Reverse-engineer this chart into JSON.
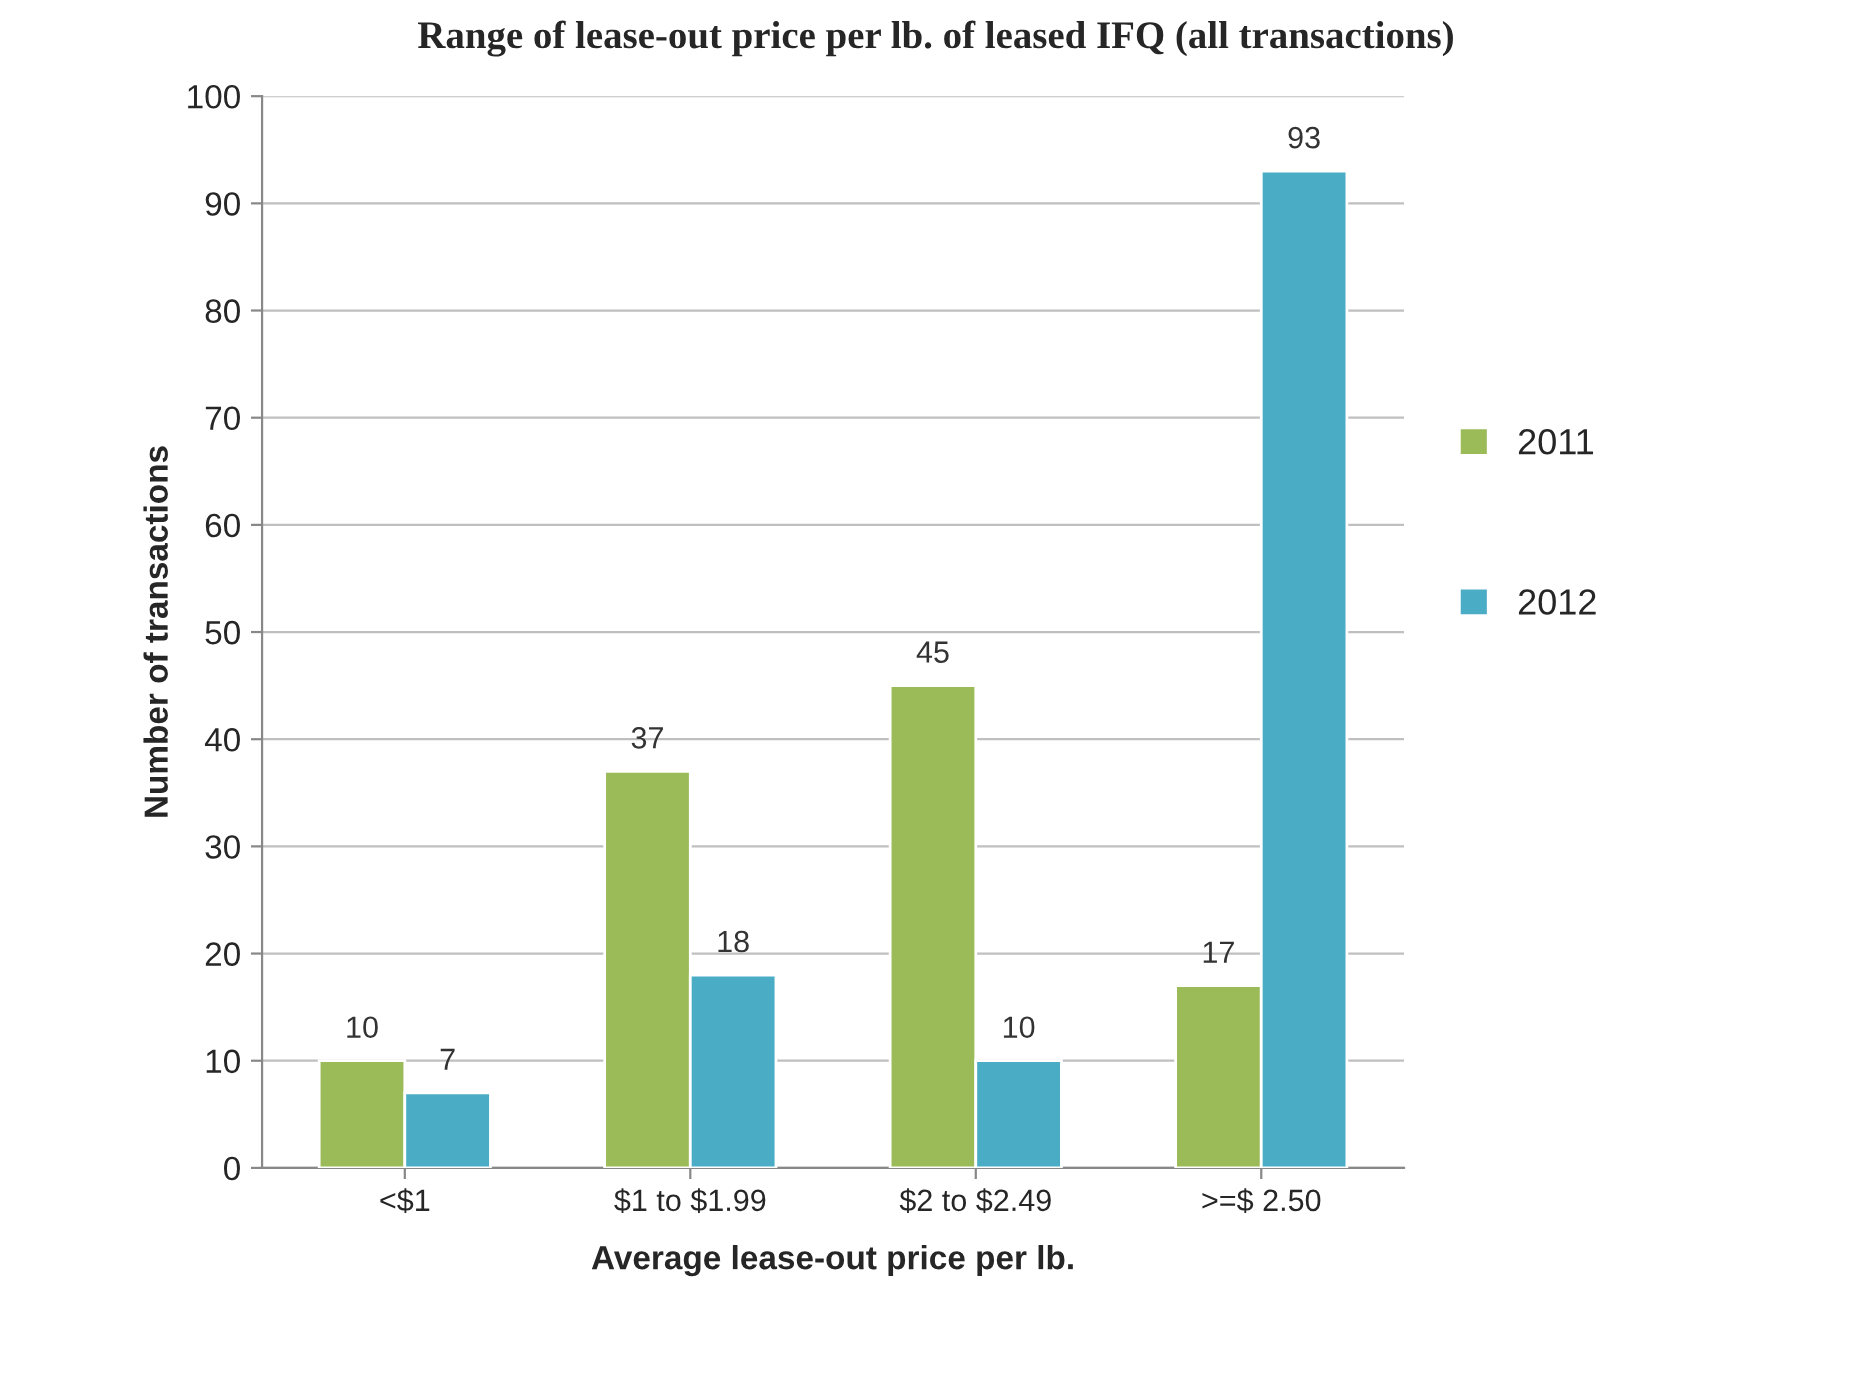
{
  "chart_data": {
    "type": "bar",
    "title": "Range of lease-out price per lb. of leased IFQ (all transactions)",
    "categories": [
      "<$1",
      "$1 to $1.99",
      "$2 to $2.49",
      ">=$ 2.50"
    ],
    "series": [
      {
        "name": "2011",
        "color": "#9bbb59",
        "values": [
          10,
          37,
          45,
          17
        ]
      },
      {
        "name": "2012",
        "color": "#4bacc6",
        "values": [
          7,
          18,
          10,
          93
        ]
      }
    ],
    "xlabel": "Average lease-out price per lb.",
    "ylabel": "Number of transactions",
    "ylim": [
      0,
      100
    ],
    "yticks": [
      0,
      10,
      20,
      30,
      40,
      50,
      60,
      70,
      80,
      90,
      100
    ],
    "grid": "y",
    "legend": "right",
    "data_labels": true
  }
}
